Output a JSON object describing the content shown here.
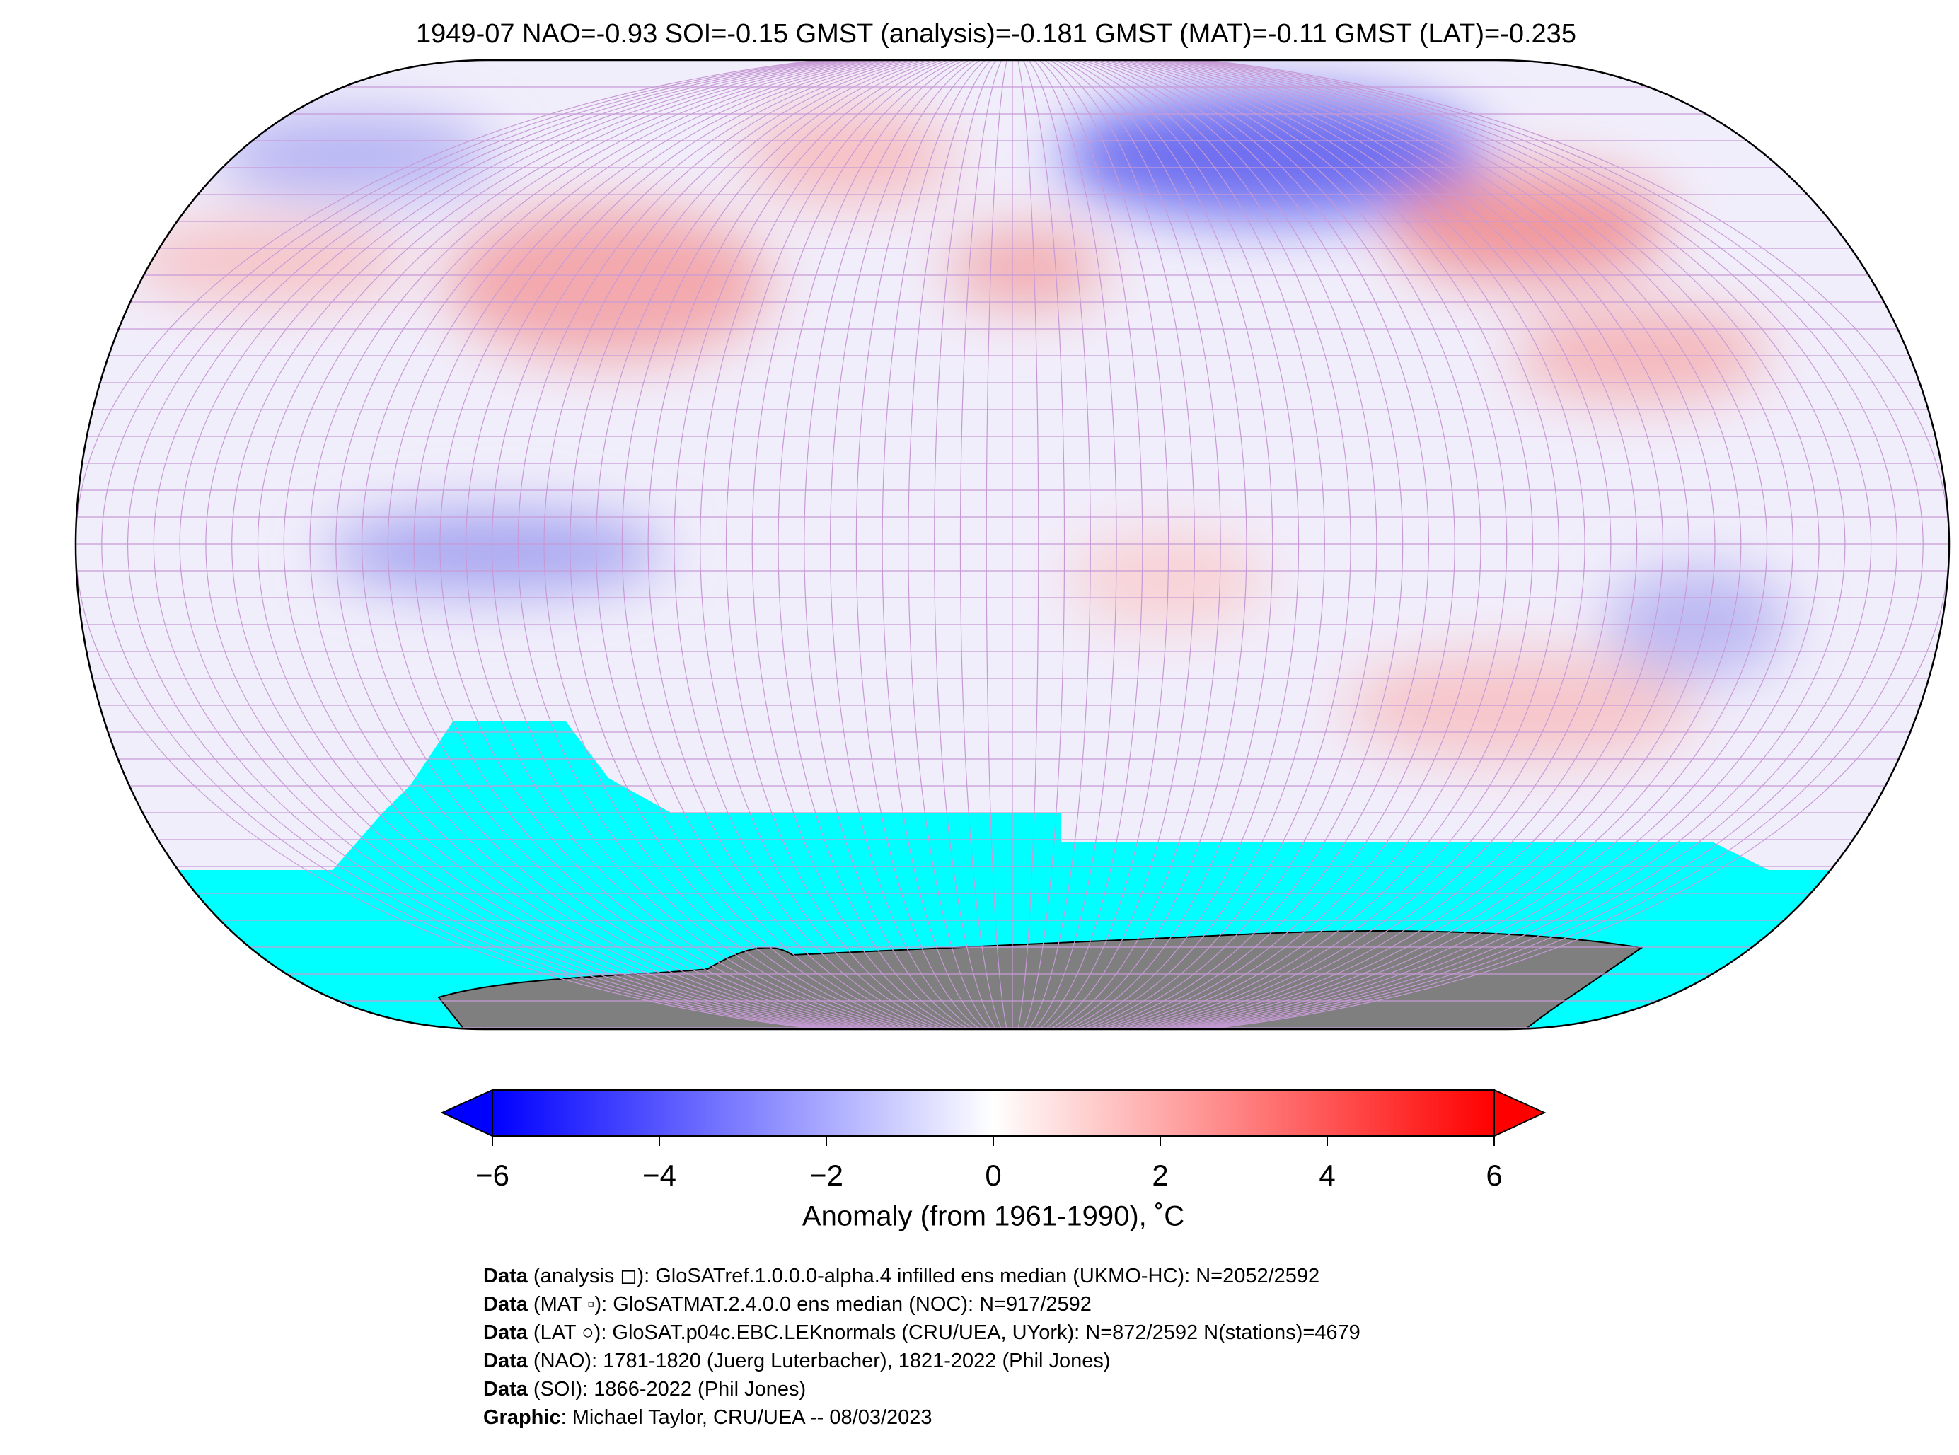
{
  "title": "1949-07 NAO=-0.93 SOI=-0.15 GMST (analysis)=-0.181 GMST (MAT)=-0.11 GMST (LAT)=-0.235",
  "colorbar": {
    "lim": [
      -6,
      6
    ],
    "ticks": [
      {
        "value": -6,
        "label": "−6"
      },
      {
        "value": -4,
        "label": "−4"
      },
      {
        "value": -2,
        "label": "−2"
      },
      0,
      2,
      4,
      6
    ],
    "label": "Anomaly (from 1961-1990), ˚C",
    "low_color": "#0000ff",
    "mid_color": "#ffffff",
    "high_color": "#ff0000"
  },
  "footer": [
    {
      "bold": "Data",
      "text": " (analysis ◻): GloSATref.1.0.0.0-alpha.4 infilled ens median (UKMO-HC): N=2052/2592"
    },
    {
      "bold": "Data",
      "text": " (MAT ▫): GloSATMAT.2.4.0.0 ens median (NOC): N=917/2592"
    },
    {
      "bold": "Data",
      "text": " (LAT ○): GloSAT.p04c.EBC.LEKnormals (CRU/UEA, UYork): N=872/2592 N(stations)=4679"
    },
    {
      "bold": "Data",
      "text": " (NAO): 1781-1820 (Juerg Luterbacher), 1821-2022 (Phil Jones)"
    },
    {
      "bold": "Data",
      "text": " (SOI): 1866-2022 (Phil Jones)"
    },
    {
      "bold": "Graphic",
      "text": ": Michael Taylor, CRU/UEA -- 08/03/2023"
    }
  ]
}
